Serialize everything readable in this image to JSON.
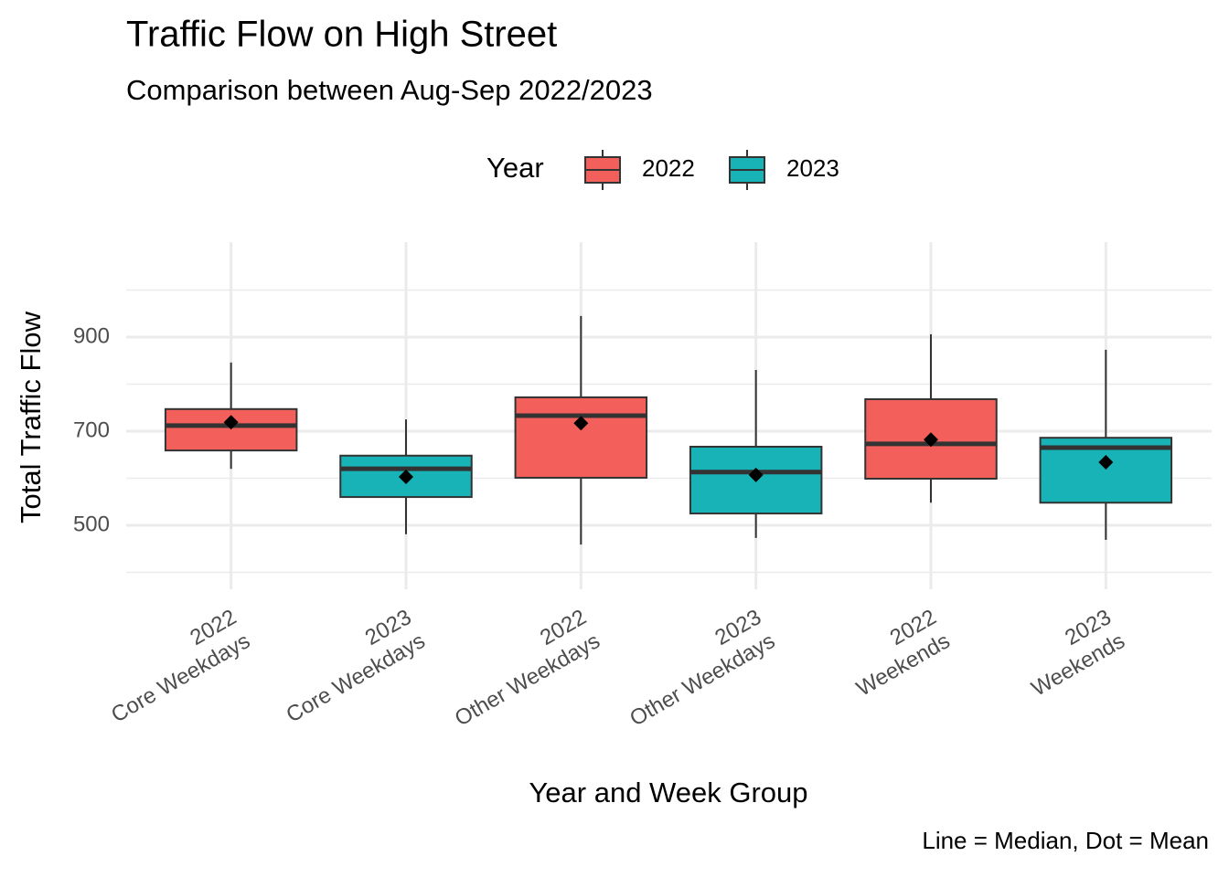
{
  "chart_data": {
    "type": "boxplot",
    "title": "Traffic Flow on High Street",
    "subtitle": "Comparison between Aug-Sep 2022/2023",
    "x_label": "Year and Week Group",
    "y_label": "Total Traffic Flow",
    "caption": "Line = Median, Dot = Mean",
    "legend_title": "Year",
    "legend_position": "top",
    "categories": [
      [
        "2022",
        "Core Weekdays"
      ],
      [
        "2023",
        "Core Weekdays"
      ],
      [
        "2022",
        "Other Weekdays"
      ],
      [
        "2023",
        "Other Weekdays"
      ],
      [
        "2022",
        "Weekends"
      ],
      [
        "2023",
        "Weekends"
      ]
    ],
    "series": [
      {
        "name": "2022",
        "color": "#F3605B",
        "values": [
          {
            "low": 620,
            "q1": 659,
            "median": 712,
            "q3": 747,
            "high": 846,
            "mean": 719
          },
          null,
          {
            "low": 459,
            "q1": 601,
            "median": 733,
            "q3": 772,
            "high": 945,
            "mean": 717
          },
          null,
          {
            "low": 548,
            "q1": 599,
            "median": 673,
            "q3": 768,
            "high": 906,
            "mean": 682
          },
          null
        ]
      },
      {
        "name": "2023",
        "color": "#17B3B7",
        "values": [
          null,
          {
            "low": 481,
            "q1": 560,
            "median": 620,
            "q3": 648,
            "high": 725,
            "mean": 603
          },
          null,
          {
            "low": 473,
            "q1": 525,
            "median": 613,
            "q3": 667,
            "high": 830,
            "mean": 607
          },
          null,
          {
            "low": 469,
            "q1": 548,
            "median": 665,
            "q3": 686,
            "high": 873,
            "mean": 634
          }
        ]
      }
    ],
    "ylim": [
      364,
      1102
    ],
    "yticks": [
      500,
      700,
      900
    ],
    "minor_yticks": [
      400,
      600,
      800,
      1000
    ],
    "grid": true
  }
}
